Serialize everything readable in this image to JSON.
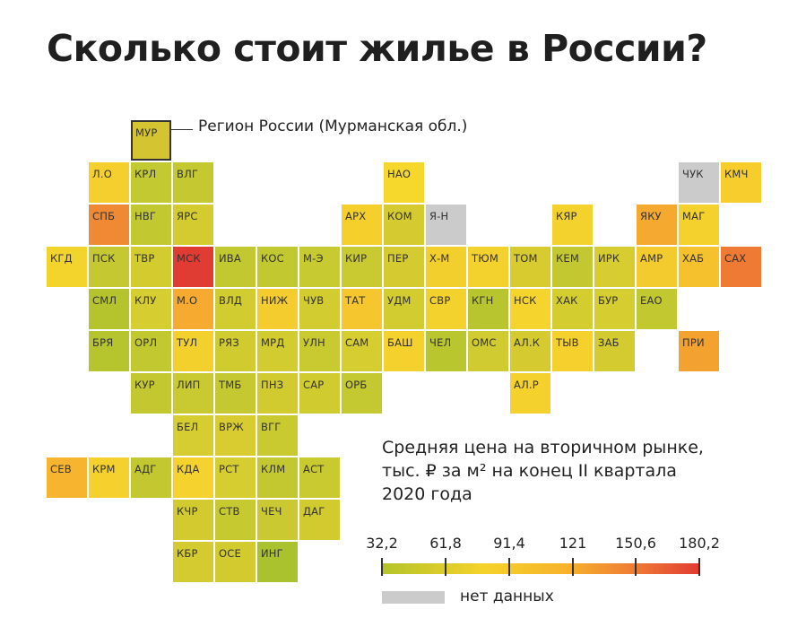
{
  "title": "Сколько стоит жилье в России?",
  "legend_sample": {
    "code": "МУР",
    "label": "Регион России (Мурманская обл.)",
    "color": "#d4c431"
  },
  "caption": {
    "line1": "Средняя цена на вторичном рынке,",
    "line2": "тыс. ₽ за м² на конец II квартала",
    "line3": "2020 года"
  },
  "scale": {
    "ticks": [
      "32,2",
      "61,8",
      "91,4",
      "121",
      "150,6",
      "180,2"
    ],
    "colors": [
      "#b3c42a",
      "#f5d22a",
      "#f7b32c",
      "#ee7a35",
      "#e23b34"
    ],
    "no_data_label": "нет данных",
    "no_data_color": "#cbcbcb"
  },
  "regions": [
    {
      "code": "Л.О",
      "row": 1,
      "col": 1,
      "color": "#f5cf2e"
    },
    {
      "code": "КРЛ",
      "row": 1,
      "col": 2,
      "color": "#c3c930"
    },
    {
      "code": "ВЛГ",
      "row": 1,
      "col": 3,
      "color": "#c4c931"
    },
    {
      "code": "НАО",
      "row": 1,
      "col": 8,
      "color": "#f6d72c"
    },
    {
      "code": "ЧУК",
      "row": 1,
      "col": 15,
      "color": "#cbcbcb"
    },
    {
      "code": "КМЧ",
      "row": 1,
      "col": 16,
      "color": "#f6cd2d"
    },
    {
      "code": "СПБ",
      "row": 2,
      "col": 1,
      "color": "#f08933"
    },
    {
      "code": "НВГ",
      "row": 2,
      "col": 2,
      "color": "#c1c830"
    },
    {
      "code": "ЯРС",
      "row": 2,
      "col": 3,
      "color": "#d3cb30"
    },
    {
      "code": "АРХ",
      "row": 2,
      "col": 7,
      "color": "#f5d02d"
    },
    {
      "code": "КОМ",
      "row": 2,
      "col": 8,
      "color": "#d5ca2f"
    },
    {
      "code": "Я-Н",
      "row": 2,
      "col": 9,
      "color": "#cbcbcb"
    },
    {
      "code": "КЯР",
      "row": 2,
      "col": 12,
      "color": "#f4d22d"
    },
    {
      "code": "ЯКУ",
      "row": 2,
      "col": 14,
      "color": "#f5a92f"
    },
    {
      "code": "МАГ",
      "row": 2,
      "col": 15,
      "color": "#f5d12d"
    },
    {
      "code": "КГД",
      "row": 3,
      "col": 0,
      "color": "#f3d42d"
    },
    {
      "code": "ПСК",
      "row": 3,
      "col": 1,
      "color": "#c5c831"
    },
    {
      "code": "ТВР",
      "row": 3,
      "col": 2,
      "color": "#d3cc2f"
    },
    {
      "code": "МСК",
      "row": 3,
      "col": 3,
      "color": "#e13c33"
    },
    {
      "code": "ИВА",
      "row": 3,
      "col": 4,
      "color": "#c2c830"
    },
    {
      "code": "КОС",
      "row": 3,
      "col": 5,
      "color": "#c2c930"
    },
    {
      "code": "М-Э",
      "row": 3,
      "col": 6,
      "color": "#c7ca31"
    },
    {
      "code": "КИР",
      "row": 3,
      "col": 7,
      "color": "#c9c931"
    },
    {
      "code": "ПЕР",
      "row": 3,
      "col": 8,
      "color": "#d5cb30"
    },
    {
      "code": "Х-М",
      "row": 3,
      "col": 9,
      "color": "#f3cf2d"
    },
    {
      "code": "ТЮМ",
      "row": 3,
      "col": 10,
      "color": "#f4d22d"
    },
    {
      "code": "ТОМ",
      "row": 3,
      "col": 11,
      "color": "#d7cb30"
    },
    {
      "code": "КЕМ",
      "row": 3,
      "col": 12,
      "color": "#c3c830"
    },
    {
      "code": "ИРК",
      "row": 3,
      "col": 13,
      "color": "#d8cd30"
    },
    {
      "code": "АМР",
      "row": 3,
      "col": 14,
      "color": "#f4cb2e"
    },
    {
      "code": "ХАБ",
      "row": 3,
      "col": 15,
      "color": "#f5c22e"
    },
    {
      "code": "САХ",
      "row": 3,
      "col": 16,
      "color": "#ee7a34"
    },
    {
      "code": "СМЛ",
      "row": 4,
      "col": 1,
      "color": "#b5c42d"
    },
    {
      "code": "КЛУ",
      "row": 4,
      "col": 2,
      "color": "#d6cd30"
    },
    {
      "code": "М.О",
      "row": 4,
      "col": 3,
      "color": "#f6aa2f"
    },
    {
      "code": "ВЛД",
      "row": 4,
      "col": 4,
      "color": "#d1cc30"
    },
    {
      "code": "НИЖ",
      "row": 4,
      "col": 5,
      "color": "#f4cc2d"
    },
    {
      "code": "ЧУВ",
      "row": 4,
      "col": 6,
      "color": "#d2cc30"
    },
    {
      "code": "ТАТ",
      "row": 4,
      "col": 7,
      "color": "#f6c62e"
    },
    {
      "code": "УДМ",
      "row": 4,
      "col": 8,
      "color": "#d3cc30"
    },
    {
      "code": "СВР",
      "row": 4,
      "col": 9,
      "color": "#f4d22d"
    },
    {
      "code": "КГН",
      "row": 4,
      "col": 10,
      "color": "#b8c52e"
    },
    {
      "code": "НСК",
      "row": 4,
      "col": 11,
      "color": "#f5d42d"
    },
    {
      "code": "ХАК",
      "row": 4,
      "col": 12,
      "color": "#d4cd30"
    },
    {
      "code": "БУР",
      "row": 4,
      "col": 13,
      "color": "#d6cd30"
    },
    {
      "code": "ЕАО",
      "row": 4,
      "col": 14,
      "color": "#c2c830"
    },
    {
      "code": "БРЯ",
      "row": 5,
      "col": 1,
      "color": "#b6c42e"
    },
    {
      "code": "ОРЛ",
      "row": 5,
      "col": 2,
      "color": "#c2c830"
    },
    {
      "code": "ТУЛ",
      "row": 5,
      "col": 3,
      "color": "#f4d02d"
    },
    {
      "code": "РЯЗ",
      "row": 5,
      "col": 4,
      "color": "#d0cc30"
    },
    {
      "code": "МРД",
      "row": 5,
      "col": 5,
      "color": "#d3cc30"
    },
    {
      "code": "УЛН",
      "row": 5,
      "col": 6,
      "color": "#c9ca30"
    },
    {
      "code": "САМ",
      "row": 5,
      "col": 7,
      "color": "#d6cd30"
    },
    {
      "code": "БАШ",
      "row": 5,
      "col": 8,
      "color": "#f4d12d"
    },
    {
      "code": "ЧЕЛ",
      "row": 5,
      "col": 9,
      "color": "#bac62e"
    },
    {
      "code": "ОМС",
      "row": 5,
      "col": 10,
      "color": "#cfcb30"
    },
    {
      "code": "АЛ.К",
      "row": 5,
      "col": 11,
      "color": "#d5cb30"
    },
    {
      "code": "ТЫВ",
      "row": 5,
      "col": 12,
      "color": "#f6d02d"
    },
    {
      "code": "ЗАБ",
      "row": 5,
      "col": 13,
      "color": "#d3cb30"
    },
    {
      "code": "ПРИ",
      "row": 5,
      "col": 15,
      "color": "#f4a22f"
    },
    {
      "code": "КУР",
      "row": 6,
      "col": 2,
      "color": "#c4c830"
    },
    {
      "code": "ЛИП",
      "row": 6,
      "col": 3,
      "color": "#c9c931"
    },
    {
      "code": "ТМБ",
      "row": 6,
      "col": 4,
      "color": "#c4c831"
    },
    {
      "code": "ПНЗ",
      "row": 6,
      "col": 5,
      "color": "#d1cb30"
    },
    {
      "code": "САР",
      "row": 6,
      "col": 6,
      "color": "#d0cc30"
    },
    {
      "code": "ОРБ",
      "row": 6,
      "col": 7,
      "color": "#c4c831"
    },
    {
      "code": "АЛ.Р",
      "row": 6,
      "col": 11,
      "color": "#f4d12d"
    },
    {
      "code": "БЕЛ",
      "row": 7,
      "col": 3,
      "color": "#d6ce30"
    },
    {
      "code": "ВРЖ",
      "row": 7,
      "col": 4,
      "color": "#d8cc30"
    },
    {
      "code": "ВГГ",
      "row": 7,
      "col": 5,
      "color": "#c9ca30"
    },
    {
      "code": "СЕВ",
      "row": 8,
      "col": 0,
      "color": "#f6b42f"
    },
    {
      "code": "КРМ",
      "row": 8,
      "col": 1,
      "color": "#f4d12d"
    },
    {
      "code": "АДГ",
      "row": 8,
      "col": 2,
      "color": "#c4c830"
    },
    {
      "code": "КДА",
      "row": 8,
      "col": 3,
      "color": "#f5d22d"
    },
    {
      "code": "РСТ",
      "row": 8,
      "col": 4,
      "color": "#d6cd30"
    },
    {
      "code": "КЛМ",
      "row": 8,
      "col": 5,
      "color": "#c3c830"
    },
    {
      "code": "АСТ",
      "row": 8,
      "col": 6,
      "color": "#c9ca30"
    },
    {
      "code": "КЧР",
      "row": 9,
      "col": 3,
      "color": "#d1cb30"
    },
    {
      "code": "СТВ",
      "row": 9,
      "col": 4,
      "color": "#c7c931"
    },
    {
      "code": "ЧЕЧ",
      "row": 9,
      "col": 5,
      "color": "#cbc931"
    },
    {
      "code": "ДАГ",
      "row": 9,
      "col": 6,
      "color": "#d1cb30"
    },
    {
      "code": "КБР",
      "row": 10,
      "col": 3,
      "color": "#d3cb30"
    },
    {
      "code": "ОСЕ",
      "row": 10,
      "col": 4,
      "color": "#d1cb30"
    },
    {
      "code": "ИНГ",
      "row": 10,
      "col": 5,
      "color": "#a9c22d"
    }
  ]
}
